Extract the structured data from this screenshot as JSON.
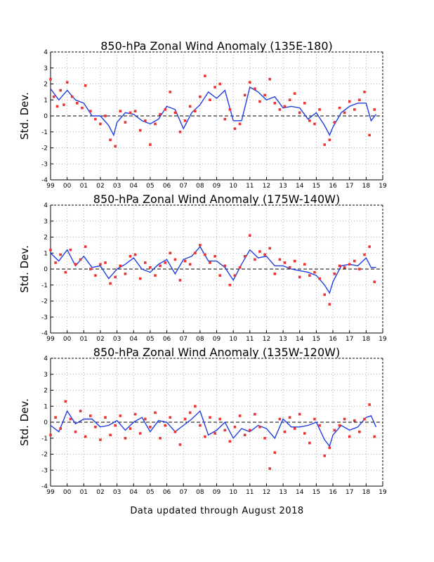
{
  "footer": "Data updated through August 2018",
  "colors": {
    "line": "#1f3fe0",
    "points": "#ee3333",
    "grid": "#9a9a9a",
    "axis": "#000000"
  },
  "chart_data": [
    {
      "type": "line",
      "title": "850-hPa Zonal Wind Anomaly (135E-180)",
      "ylabel": "Std. Dev.",
      "xlabel": "",
      "x_tick_labels": [
        "99",
        "00",
        "01",
        "02",
        "03",
        "04",
        "05",
        "06",
        "07",
        "08",
        "09",
        "10",
        "11",
        "12",
        "13",
        "14",
        "15",
        "16",
        "17",
        "18",
        "19"
      ],
      "y_tick_labels": [
        "4",
        "3",
        "2",
        "1",
        "0",
        "-1",
        "-2",
        "-3",
        "-4"
      ],
      "ylim": [
        -4,
        4
      ],
      "xlim": [
        1999,
        2019
      ],
      "grid": true,
      "series": [
        {
          "kind": "line",
          "x": [
            1999.0,
            1999.5,
            2000.0,
            2000.5,
            2001.0,
            2001.5,
            2002.0,
            2002.5,
            2002.8,
            2003.0,
            2003.5,
            2004.0,
            2004.5,
            2005.0,
            2005.5,
            2006.0,
            2006.5,
            2007.0,
            2007.5,
            2008.0,
            2008.5,
            2009.0,
            2009.5,
            2010.0,
            2010.5,
            2011.0,
            2011.5,
            2012.0,
            2012.5,
            2013.0,
            2013.5,
            2014.0,
            2014.5,
            2015.0,
            2015.5,
            2015.8,
            2016.0,
            2016.5,
            2017.0,
            2017.5,
            2018.0,
            2018.3,
            2018.6
          ],
          "y": [
            1.7,
            1.0,
            1.6,
            1.0,
            0.8,
            0.0,
            0.0,
            -0.6,
            -1.2,
            -0.4,
            0.2,
            0.1,
            -0.3,
            -0.5,
            -0.2,
            0.6,
            0.4,
            -0.8,
            0.2,
            0.7,
            1.5,
            1.1,
            1.6,
            -0.3,
            -0.3,
            1.8,
            1.5,
            1.0,
            1.2,
            0.5,
            0.6,
            0.5,
            -0.2,
            0.2,
            -0.6,
            -1.2,
            -0.7,
            0.2,
            0.6,
            0.8,
            0.8,
            -0.3,
            0.1
          ]
        },
        {
          "kind": "points",
          "x": [
            1999.0,
            1999.2,
            1999.4,
            1999.6,
            1999.8,
            2000.0,
            2000.3,
            2000.6,
            2000.9,
            2001.1,
            2001.4,
            2001.7,
            2002.0,
            2002.3,
            2002.6,
            2002.9,
            2003.2,
            2003.5,
            2003.8,
            2004.1,
            2004.4,
            2004.7,
            2005.0,
            2005.3,
            2005.6,
            2005.9,
            2006.2,
            2006.5,
            2006.8,
            2007.1,
            2007.4,
            2007.7,
            2008.0,
            2008.3,
            2008.6,
            2008.9,
            2009.2,
            2009.5,
            2009.8,
            2010.1,
            2010.4,
            2010.7,
            2011.0,
            2011.3,
            2011.6,
            2011.9,
            2012.2,
            2012.5,
            2012.8,
            2013.1,
            2013.4,
            2013.7,
            2014.0,
            2014.3,
            2014.6,
            2014.9,
            2015.2,
            2015.5,
            2015.8,
            2016.1,
            2016.4,
            2016.7,
            2017.0,
            2017.3,
            2017.6,
            2017.9,
            2018.2,
            2018.5
          ],
          "y": [
            2.3,
            1.2,
            0.6,
            1.6,
            0.7,
            2.1,
            1.2,
            0.8,
            0.5,
            1.9,
            0.3,
            -0.2,
            -0.5,
            0.0,
            -1.5,
            -1.9,
            0.3,
            -0.4,
            0.2,
            0.3,
            -0.9,
            -0.3,
            -1.8,
            -0.5,
            0.1,
            0.4,
            1.5,
            0.2,
            -1.0,
            -0.3,
            0.6,
            0.3,
            1.2,
            2.5,
            1.0,
            1.8,
            2.0,
            -0.2,
            0.4,
            -0.8,
            -0.5,
            1.3,
            2.1,
            1.7,
            0.9,
            1.3,
            2.3,
            0.8,
            0.4,
            0.6,
            1.0,
            1.4,
            0.2,
            0.8,
            -0.3,
            -0.5,
            0.4,
            -1.8,
            -1.5,
            -0.4,
            0.5,
            0.2,
            0.9,
            0.4,
            1.0,
            1.5,
            -1.2,
            0.4
          ]
        }
      ]
    },
    {
      "type": "line",
      "title": "850-hPa Zonal Wind Anomaly (175W-140W)",
      "ylabel": "Std. Dev.",
      "xlabel": "",
      "x_tick_labels": [
        "99",
        "00",
        "01",
        "02",
        "03",
        "04",
        "05",
        "06",
        "07",
        "08",
        "09",
        "10",
        "11",
        "12",
        "13",
        "14",
        "15",
        "16",
        "17",
        "18",
        "19"
      ],
      "y_tick_labels": [
        "4",
        "3",
        "2",
        "1",
        "0",
        "-1",
        "-2",
        "-3",
        "-4"
      ],
      "ylim": [
        -4,
        4
      ],
      "xlim": [
        1999,
        2019
      ],
      "grid": true,
      "series": [
        {
          "kind": "line",
          "x": [
            1999.0,
            1999.5,
            2000.0,
            2000.5,
            2001.0,
            2001.5,
            2002.0,
            2002.5,
            2003.0,
            2003.5,
            2004.0,
            2004.5,
            2005.0,
            2005.5,
            2006.0,
            2006.5,
            2007.0,
            2007.5,
            2008.0,
            2008.5,
            2009.0,
            2009.5,
            2010.0,
            2010.5,
            2011.0,
            2011.5,
            2012.0,
            2012.5,
            2013.0,
            2013.5,
            2014.0,
            2014.5,
            2015.0,
            2015.5,
            2015.8,
            2016.0,
            2016.5,
            2017.0,
            2017.5,
            2018.0,
            2018.3,
            2018.6
          ],
          "y": [
            1.0,
            0.5,
            1.2,
            0.2,
            0.8,
            0.1,
            0.2,
            -0.6,
            0.0,
            0.3,
            0.7,
            0.0,
            -0.2,
            0.3,
            0.6,
            -0.3,
            0.6,
            0.8,
            1.4,
            0.5,
            0.5,
            0.1,
            -0.7,
            0.3,
            1.2,
            0.7,
            0.8,
            0.2,
            0.2,
            0.0,
            -0.1,
            -0.2,
            -0.4,
            -1.0,
            -1.5,
            -0.8,
            0.2,
            0.3,
            0.2,
            0.7,
            0.1,
            0.1
          ]
        },
        {
          "kind": "points",
          "x": [
            1999.0,
            1999.3,
            1999.6,
            1999.9,
            2000.2,
            2000.5,
            2000.8,
            2001.1,
            2001.4,
            2001.7,
            2002.0,
            2002.3,
            2002.6,
            2002.9,
            2003.2,
            2003.5,
            2003.8,
            2004.1,
            2004.4,
            2004.7,
            2005.0,
            2005.3,
            2005.6,
            2005.9,
            2006.2,
            2006.5,
            2006.8,
            2007.1,
            2007.4,
            2007.7,
            2008.0,
            2008.3,
            2008.6,
            2008.9,
            2009.2,
            2009.5,
            2009.8,
            2010.1,
            2010.4,
            2010.7,
            2011.0,
            2011.3,
            2011.6,
            2011.9,
            2012.2,
            2012.5,
            2012.8,
            2013.1,
            2013.4,
            2013.7,
            2014.0,
            2014.3,
            2014.6,
            2014.9,
            2015.2,
            2015.5,
            2015.8,
            2016.1,
            2016.4,
            2016.7,
            2017.0,
            2017.3,
            2017.6,
            2017.9,
            2018.2,
            2018.5
          ],
          "y": [
            1.2,
            0.4,
            0.9,
            -0.2,
            1.2,
            0.3,
            0.6,
            1.4,
            0.0,
            -0.4,
            0.3,
            0.4,
            -0.9,
            -0.5,
            0.2,
            -0.3,
            0.8,
            0.9,
            -0.6,
            0.4,
            0.1,
            -0.4,
            0.2,
            0.4,
            1.0,
            0.6,
            -0.7,
            0.5,
            0.3,
            1.0,
            1.5,
            0.9,
            0.4,
            0.8,
            -0.4,
            0.2,
            -1.0,
            -0.4,
            0.1,
            0.8,
            2.1,
            0.6,
            1.1,
            0.9,
            1.3,
            -0.3,
            0.6,
            0.4,
            0.1,
            0.5,
            -0.5,
            0.3,
            -0.4,
            -0.2,
            -0.6,
            -1.6,
            -2.2,
            -0.3,
            0.2,
            0.1,
            0.3,
            0.5,
            0.0,
            0.9,
            1.4,
            -0.8
          ]
        }
      ]
    },
    {
      "type": "line",
      "title": "850-hPa Zonal Wind Anomaly (135W-120W)",
      "ylabel": "Std. Dev.",
      "xlabel": "",
      "x_tick_labels": [
        "99",
        "00",
        "01",
        "02",
        "03",
        "04",
        "05",
        "06",
        "07",
        "08",
        "09",
        "10",
        "11",
        "12",
        "13",
        "14",
        "15",
        "16",
        "17",
        "18",
        "19"
      ],
      "y_tick_labels": [
        "4",
        "3",
        "2",
        "1",
        "0",
        "-1",
        "-2",
        "-3",
        "-4"
      ],
      "ylim": [
        -4,
        4
      ],
      "xlim": [
        1999,
        2019
      ],
      "grid": true,
      "series": [
        {
          "kind": "line",
          "x": [
            1999.0,
            1999.5,
            2000.0,
            2000.5,
            2001.0,
            2001.5,
            2002.0,
            2002.5,
            2003.0,
            2003.5,
            2004.0,
            2004.5,
            2005.0,
            2005.5,
            2006.0,
            2006.5,
            2007.0,
            2007.5,
            2008.0,
            2008.5,
            2009.0,
            2009.5,
            2010.0,
            2010.5,
            2011.0,
            2011.5,
            2012.0,
            2012.5,
            2013.0,
            2013.5,
            2014.0,
            2014.5,
            2015.0,
            2015.5,
            2015.8,
            2016.0,
            2016.5,
            2017.0,
            2017.5,
            2018.0,
            2018.3,
            2018.6
          ],
          "y": [
            -0.2,
            -0.6,
            0.7,
            -0.1,
            0.2,
            0.2,
            -0.3,
            -0.2,
            0.1,
            -0.5,
            0.0,
            0.3,
            -0.6,
            0.1,
            0.0,
            -0.6,
            -0.2,
            0.2,
            0.7,
            -0.8,
            -0.5,
            0.0,
            -1.0,
            -0.4,
            -0.6,
            -0.2,
            -0.4,
            -1.0,
            0.2,
            -0.3,
            -0.3,
            -0.2,
            0.0,
            -1.1,
            -1.5,
            -0.8,
            -0.2,
            -0.5,
            -0.3,
            0.3,
            0.4,
            -0.3
          ]
        },
        {
          "kind": "points",
          "x": [
            1999.0,
            1999.3,
            1999.6,
            1999.9,
            2000.2,
            2000.5,
            2000.8,
            2001.1,
            2001.4,
            2001.7,
            2002.0,
            2002.3,
            2002.6,
            2002.9,
            2003.2,
            2003.5,
            2003.8,
            2004.1,
            2004.4,
            2004.7,
            2005.0,
            2005.3,
            2005.6,
            2005.9,
            2006.2,
            2006.5,
            2006.8,
            2007.1,
            2007.4,
            2007.7,
            2008.0,
            2008.3,
            2008.6,
            2008.9,
            2009.2,
            2009.5,
            2009.8,
            2010.1,
            2010.4,
            2010.7,
            2011.0,
            2011.3,
            2011.6,
            2011.9,
            2012.2,
            2012.5,
            2012.8,
            2013.1,
            2013.4,
            2013.7,
            2014.0,
            2014.3,
            2014.6,
            2014.9,
            2015.2,
            2015.5,
            2015.8,
            2016.1,
            2016.4,
            2016.7,
            2017.0,
            2017.3,
            2017.6,
            2017.9,
            2018.2,
            2018.5
          ],
          "y": [
            -0.8,
            0.3,
            -0.4,
            1.3,
            0.2,
            -0.6,
            0.7,
            -0.9,
            0.4,
            -0.3,
            -1.1,
            0.3,
            -0.8,
            -0.2,
            0.4,
            -1.0,
            -0.4,
            0.5,
            -0.7,
            0.2,
            -0.3,
            0.6,
            -1.0,
            -0.2,
            0.3,
            -0.6,
            -1.4,
            0.2,
            0.6,
            1.0,
            -0.2,
            -0.9,
            0.3,
            -0.7,
            0.2,
            -0.5,
            -1.2,
            -0.3,
            0.4,
            -0.8,
            -0.5,
            0.5,
            -0.3,
            -1.0,
            -2.9,
            -1.9,
            0.2,
            -0.6,
            0.3,
            -0.4,
            0.5,
            -0.7,
            -1.3,
            0.2,
            -0.2,
            -2.1,
            -1.6,
            -0.5,
            -0.2,
            0.2,
            -0.9,
            0.1,
            -0.6,
            0.2,
            1.1,
            -0.9
          ]
        }
      ]
    }
  ]
}
